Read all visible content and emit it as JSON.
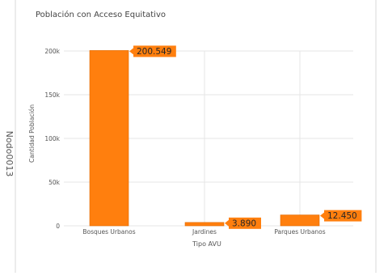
{
  "side_label": "Nodo0013",
  "chart_data": {
    "type": "bar",
    "title": "Población con Acceso Equitativo",
    "xlabel": "Tipo AVU",
    "ylabel": "Cantidad Población",
    "categories": [
      "Bosques Urbanos",
      "Jardines",
      "Parques Urbanos"
    ],
    "values": [
      200549,
      3890,
      12450
    ],
    "data_labels": [
      "200.549",
      "3.890",
      "12.450"
    ],
    "ylim": [
      0,
      200000
    ],
    "yticks": [
      0,
      50000,
      100000,
      150000,
      200000
    ],
    "ytick_labels": [
      "0",
      "50k",
      "100k",
      "150k",
      "200k"
    ],
    "grid": true,
    "colors": {
      "bar": "#ff7f0e",
      "bar_stroke": "#e06a00",
      "label_bg": "#ff7f0e",
      "label_text": "#262626",
      "grid": "#e6e6e6",
      "axis_text": "#555555",
      "title": "#444444",
      "panel_border": "#c8c8c8"
    }
  }
}
